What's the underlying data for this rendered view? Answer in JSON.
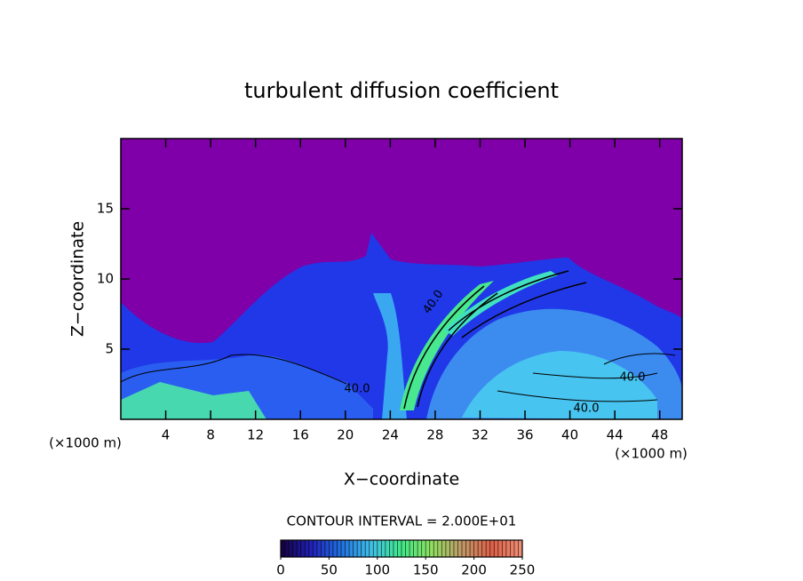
{
  "chart_data": {
    "type": "contour",
    "title": "turbulent diffusion coefficient",
    "xlabel": "X−coordinate",
    "ylabel": "Z−coordinate",
    "x_unit_label": "(×1000 m)",
    "xlim": [
      0,
      50
    ],
    "ylim": [
      0,
      20
    ],
    "xticks": [
      4,
      8,
      12,
      16,
      20,
      24,
      28,
      32,
      36,
      40,
      44,
      48
    ],
    "yticks": [
      5,
      10,
      15
    ],
    "background_color": "#7f00a8",
    "contour_labels": [
      "40.0",
      "40.0",
      "40.0",
      "40.0"
    ],
    "contour_interval_label": "CONTOUR INTERVAL = 2.000E+01",
    "colorbar": {
      "lim": [
        0,
        250
      ],
      "ticks": [
        0,
        50,
        100,
        150,
        200,
        250
      ],
      "colors": [
        "#14003c",
        "#2020b8",
        "#2070e0",
        "#40c0e8",
        "#40e888",
        "#90e060",
        "#c09868",
        "#e06048",
        "#f09078"
      ]
    }
  }
}
